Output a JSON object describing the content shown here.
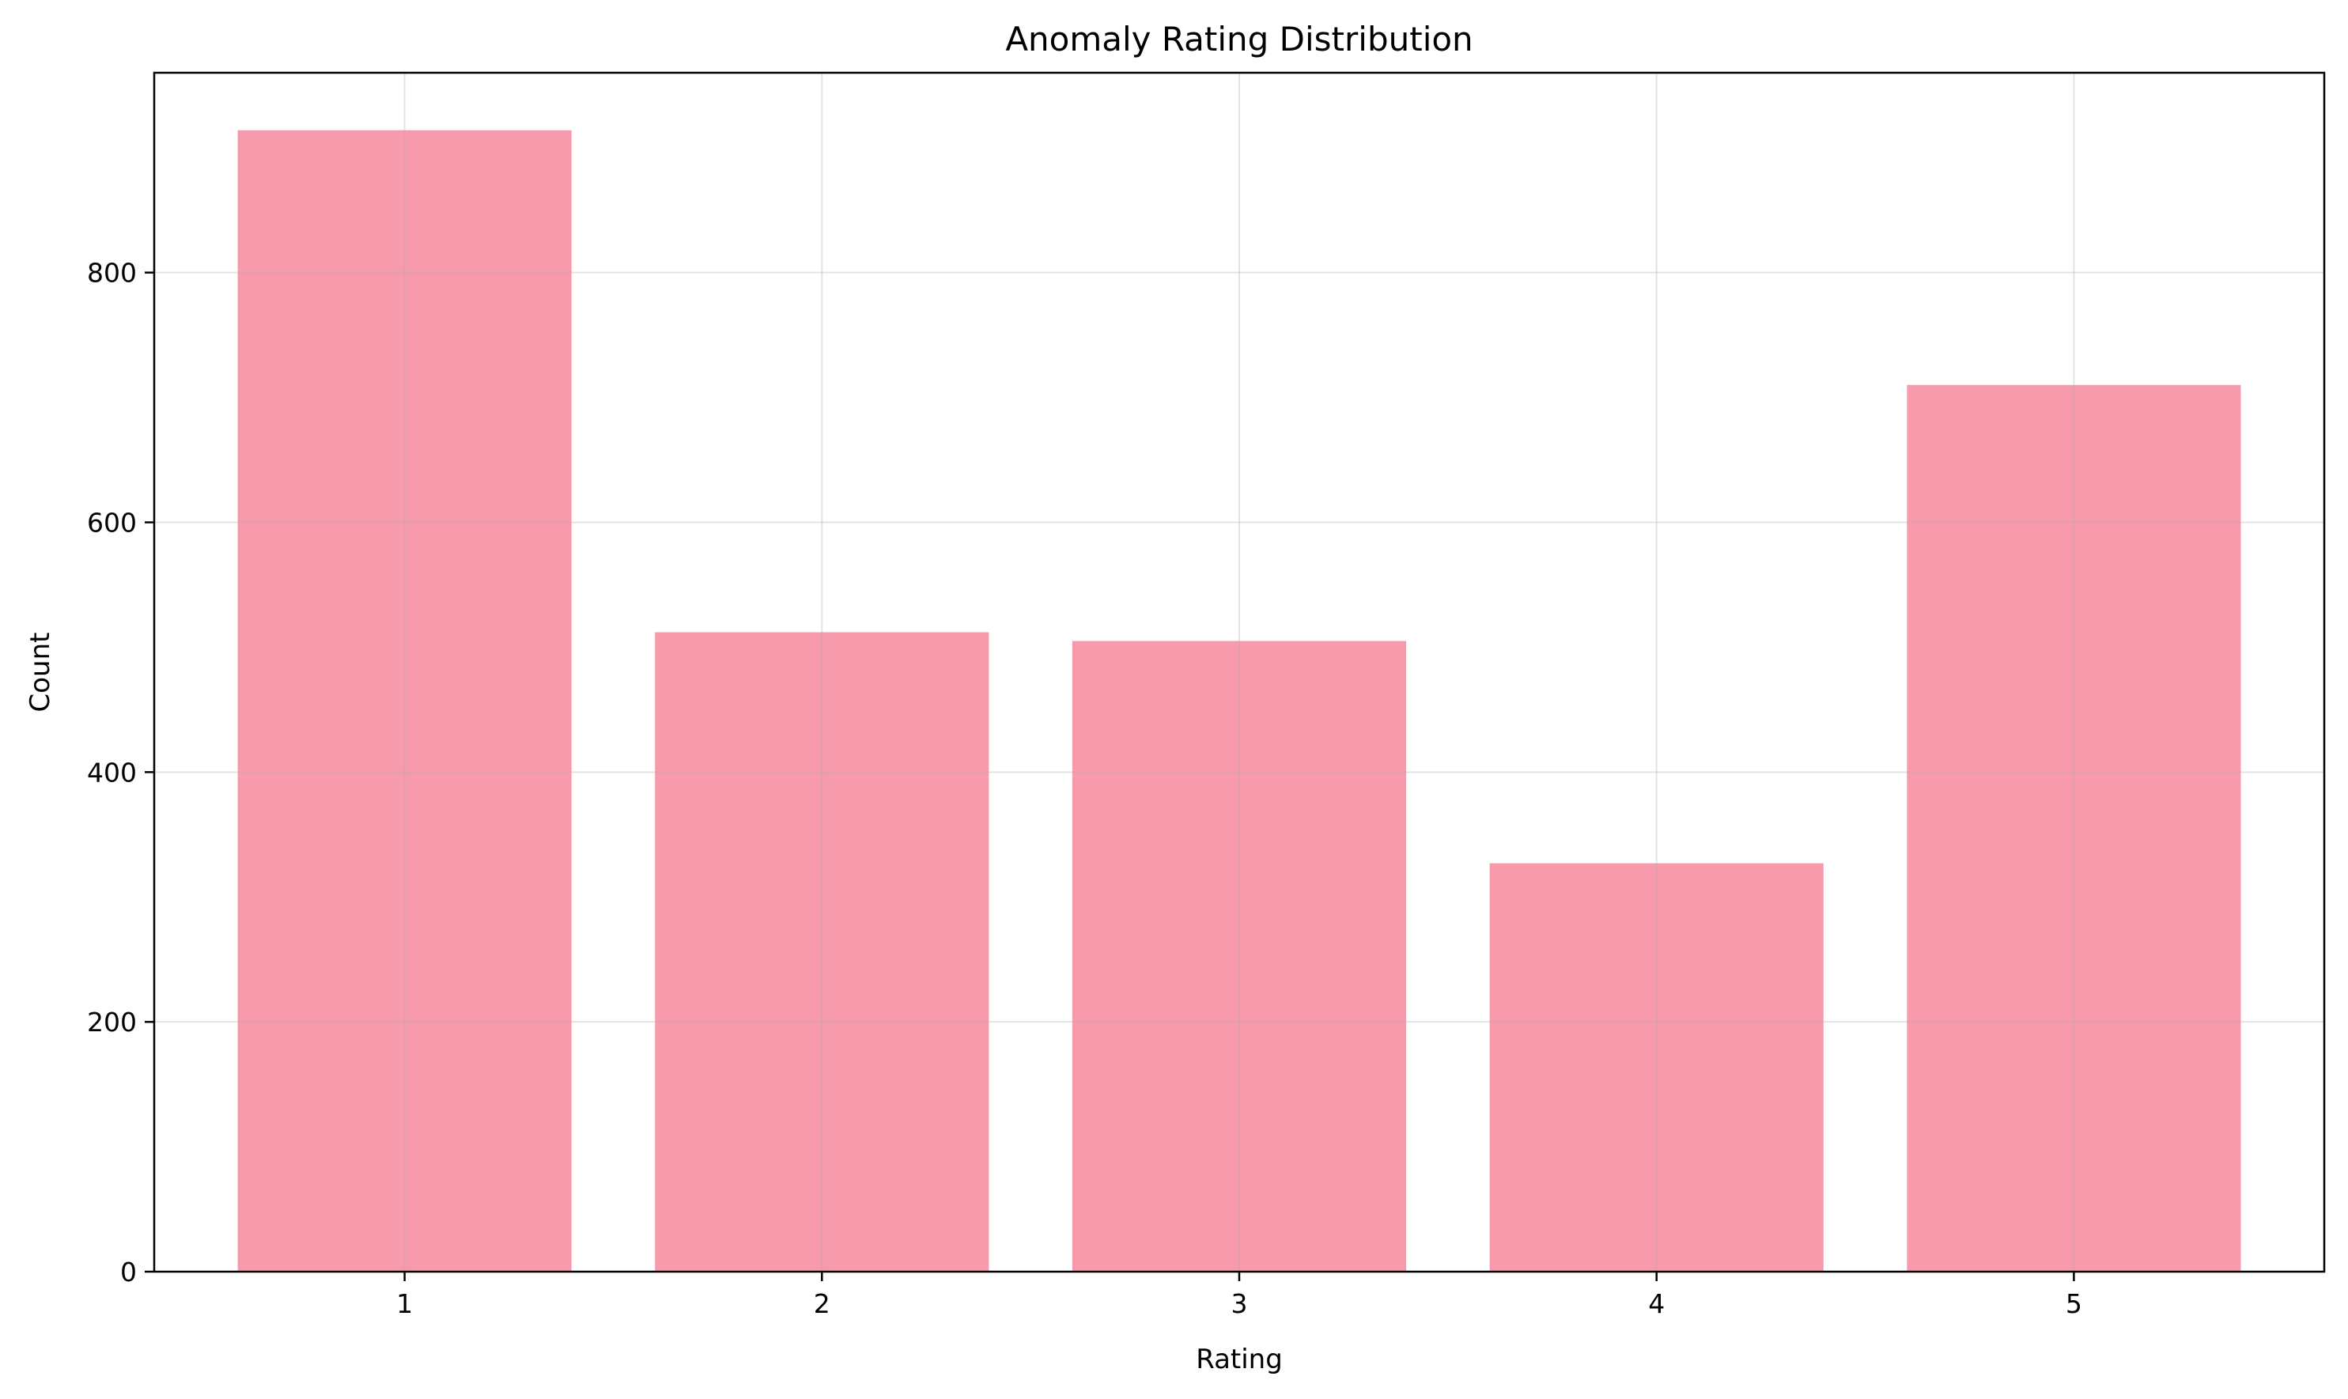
{
  "chart_data": {
    "type": "bar",
    "title": "Anomaly Rating Distribution",
    "xlabel": "Rating",
    "ylabel": "Count",
    "categories": [
      "1",
      "2",
      "3",
      "4",
      "5"
    ],
    "values": [
      914,
      512,
      505,
      327,
      710
    ],
    "ylim": [
      0,
      960
    ],
    "yticks": [
      0,
      200,
      400,
      600,
      800
    ],
    "bar_color": "#f79aac",
    "grid": true,
    "legend": "none"
  }
}
